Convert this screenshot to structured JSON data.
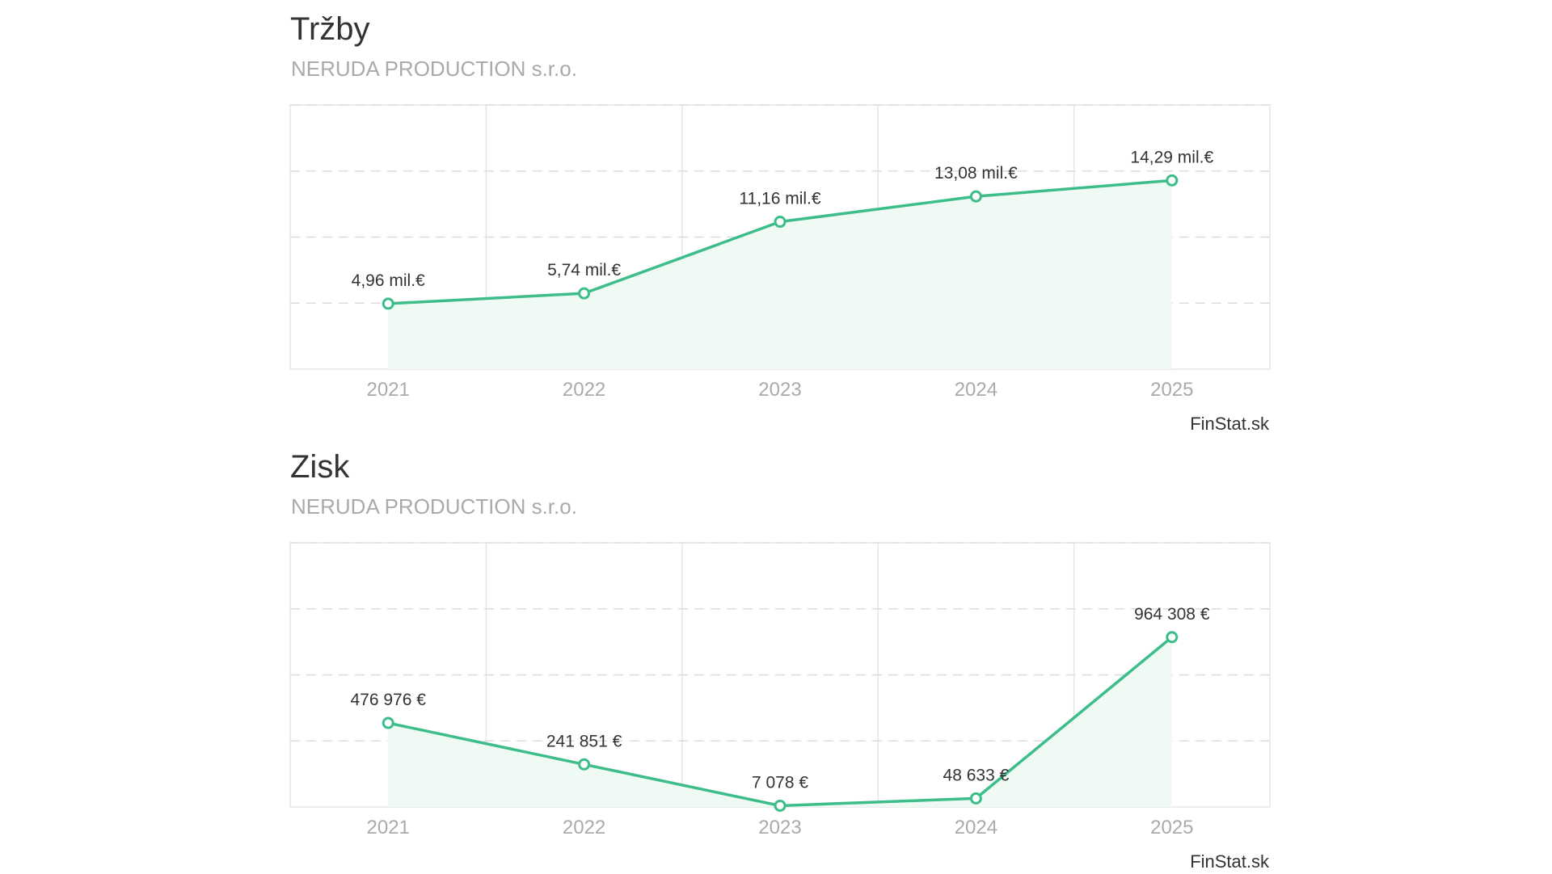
{
  "chart_data": [
    {
      "type": "line",
      "title": "Tržby",
      "subtitle": "NERUDA PRODUCTION s.r.o.",
      "categories": [
        "2021",
        "2022",
        "2023",
        "2024",
        "2025"
      ],
      "values": [
        4960000,
        5740000,
        11160000,
        13080000,
        14290000
      ],
      "labels": [
        "4,96 mil.€",
        "5,74 mil.€",
        "11,16 mil.€",
        "13,08 mil.€",
        "14,29 mil.€"
      ],
      "ylim": [
        0,
        20000000
      ],
      "grid": true,
      "credit": "FinStat.sk",
      "line_color": "#3dbd8a",
      "fill_color": "#f0faf5"
    },
    {
      "type": "line",
      "title": "Zisk",
      "subtitle": "NERUDA PRODUCTION s.r.o.",
      "categories": [
        "2021",
        "2022",
        "2023",
        "2024",
        "2025"
      ],
      "values": [
        476976,
        241851,
        7078,
        48633,
        964308
      ],
      "labels": [
        "476 976 €",
        "241 851 €",
        "7 078 €",
        "48 633 €",
        "964 308 €"
      ],
      "ylim": [
        0,
        1500000
      ],
      "grid": true,
      "credit": "FinStat.sk",
      "line_color": "#3dbd8a",
      "fill_color": "#f0faf5"
    }
  ]
}
